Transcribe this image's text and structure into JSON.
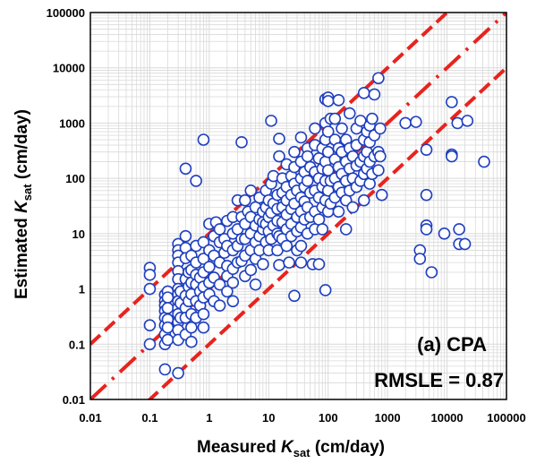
{
  "chart_data": {
    "type": "scatter",
    "title": "",
    "x_scale": "log",
    "y_scale": "log",
    "xlim": [
      0.01,
      100000
    ],
    "ylim": [
      0.01,
      100000
    ],
    "grid": true,
    "xlabel": {
      "pre": "Measured ",
      "var": "K",
      "sub": "sat",
      "post": " (cm/day)"
    },
    "ylabel": {
      "pre": "Estimated ",
      "var": "K",
      "sub": "sat",
      "post": " (cm/day)"
    },
    "x_ticks": [
      "0.01",
      "0.1",
      "1",
      "10",
      "100",
      "1000",
      "10000",
      "100000"
    ],
    "y_ticks": [
      "0.01",
      "0.1",
      "1",
      "10",
      "100",
      "1000",
      "10000",
      "100000"
    ],
    "annotations": [
      "(a) CPA",
      "RMSLE = 0.87"
    ],
    "colors": {
      "points": "#1f3fbf",
      "lines": "#e8231e",
      "grid": "#d9d9d9"
    },
    "reference_lines": [
      {
        "kind": "1:1",
        "style": "dash-dot",
        "offset_decades": 0
      },
      {
        "kind": "+2 order",
        "style": "dashed",
        "offset_decades": 1
      },
      {
        "kind": "-2 order",
        "style": "dashed",
        "offset_decades": -1
      }
    ],
    "points": [
      [
        0.1,
        2.4
      ],
      [
        0.1,
        1.8
      ],
      [
        0.1,
        1.0
      ],
      [
        0.1,
        0.22
      ],
      [
        0.1,
        0.1
      ],
      [
        0.18,
        0.78
      ],
      [
        0.18,
        0.6
      ],
      [
        0.18,
        0.5
      ],
      [
        0.18,
        0.4
      ],
      [
        0.18,
        0.3
      ],
      [
        0.18,
        0.22
      ],
      [
        0.18,
        0.15
      ],
      [
        0.18,
        0.1
      ],
      [
        0.18,
        0.035
      ],
      [
        0.2,
        0.9
      ],
      [
        0.2,
        0.7
      ],
      [
        0.2,
        0.45
      ],
      [
        0.2,
        0.28
      ],
      [
        0.2,
        0.2
      ],
      [
        0.2,
        0.12
      ],
      [
        0.3,
        6.5
      ],
      [
        0.3,
        5
      ],
      [
        0.3,
        4
      ],
      [
        0.3,
        3
      ],
      [
        0.3,
        2.1
      ],
      [
        0.3,
        1.5
      ],
      [
        0.3,
        1.0
      ],
      [
        0.3,
        0.8
      ],
      [
        0.3,
        0.6
      ],
      [
        0.3,
        0.45
      ],
      [
        0.3,
        0.35
      ],
      [
        0.3,
        0.25
      ],
      [
        0.3,
        0.18
      ],
      [
        0.3,
        0.12
      ],
      [
        0.3,
        0.03
      ],
      [
        0.33,
        0.55
      ],
      [
        0.33,
        0.3
      ],
      [
        0.33,
        0.9
      ],
      [
        0.4,
        150
      ],
      [
        0.4,
        9
      ],
      [
        0.4,
        5.5
      ],
      [
        0.4,
        3.6
      ],
      [
        0.4,
        1.5
      ],
      [
        0.4,
        0.75
      ],
      [
        0.4,
        0.45
      ],
      [
        0.4,
        0.3
      ],
      [
        0.4,
        0.15
      ],
      [
        0.45,
        2
      ],
      [
        0.45,
        1.1
      ],
      [
        0.45,
        0.6
      ],
      [
        0.5,
        4
      ],
      [
        0.5,
        2.2
      ],
      [
        0.5,
        1.3
      ],
      [
        0.5,
        0.8
      ],
      [
        0.5,
        0.35
      ],
      [
        0.5,
        0.2
      ],
      [
        0.5,
        0.11
      ],
      [
        0.6,
        90
      ],
      [
        0.6,
        6
      ],
      [
        0.6,
        3
      ],
      [
        0.6,
        1.8
      ],
      [
        0.6,
        1.2
      ],
      [
        0.6,
        0.6
      ],
      [
        0.6,
        0.3
      ],
      [
        0.7,
        0.5
      ],
      [
        0.7,
        0.9
      ],
      [
        0.7,
        1.6
      ],
      [
        0.8,
        500
      ],
      [
        0.8,
        7
      ],
      [
        0.8,
        3.5
      ],
      [
        0.8,
        2
      ],
      [
        0.8,
        1.1
      ],
      [
        0.8,
        0.7
      ],
      [
        0.8,
        0.35
      ],
      [
        0.8,
        0.2
      ],
      [
        1.0,
        15
      ],
      [
        1.0,
        5
      ],
      [
        1.0,
        2.5
      ],
      [
        1.0,
        1.3
      ],
      [
        1.0,
        0.8
      ],
      [
        1.2,
        9
      ],
      [
        1.2,
        4
      ],
      [
        1.2,
        1.6
      ],
      [
        1.2,
        0.6
      ],
      [
        1.3,
        16
      ],
      [
        1.5,
        12
      ],
      [
        1.5,
        7
      ],
      [
        1.5,
        3
      ],
      [
        1.5,
        1.2
      ],
      [
        1.5,
        0.5
      ],
      [
        1.8,
        8
      ],
      [
        1.8,
        4.5
      ],
      [
        2,
        17
      ],
      [
        2,
        6
      ],
      [
        2,
        2.6
      ],
      [
        2,
        1.7
      ],
      [
        2,
        0.9
      ],
      [
        2.5,
        20
      ],
      [
        2.5,
        10
      ],
      [
        2.5,
        5
      ],
      [
        2.5,
        2.3
      ],
      [
        2.5,
        1.3
      ],
      [
        2.5,
        0.6
      ],
      [
        3,
        40
      ],
      [
        3,
        12
      ],
      [
        3,
        6
      ],
      [
        3,
        3
      ],
      [
        3.5,
        450
      ],
      [
        3.5,
        20
      ],
      [
        3.5,
        8
      ],
      [
        3.5,
        3.2
      ],
      [
        4,
        40
      ],
      [
        4,
        15
      ],
      [
        4,
        8
      ],
      [
        4,
        4
      ],
      [
        4,
        1.7
      ],
      [
        4.5,
        25
      ],
      [
        5,
        60
      ],
      [
        5,
        20
      ],
      [
        5,
        10
      ],
      [
        5,
        5
      ],
      [
        5,
        2.2
      ],
      [
        6,
        30
      ],
      [
        6,
        14
      ],
      [
        6,
        7
      ],
      [
        6,
        3.5
      ],
      [
        6,
        1.2
      ],
      [
        7,
        45
      ],
      [
        7,
        18
      ],
      [
        7,
        9
      ],
      [
        7,
        5
      ],
      [
        8,
        25
      ],
      [
        8,
        12
      ],
      [
        8,
        2.8
      ],
      [
        8,
        16
      ],
      [
        9,
        60
      ],
      [
        9,
        30
      ],
      [
        9,
        15
      ],
      [
        9,
        7
      ],
      [
        10,
        40
      ],
      [
        10,
        20
      ],
      [
        10,
        11
      ],
      [
        10,
        5
      ],
      [
        11,
        1100
      ],
      [
        11,
        80
      ],
      [
        11,
        24
      ],
      [
        11,
        8
      ],
      [
        12,
        110
      ],
      [
        12,
        35
      ],
      [
        12,
        14
      ],
      [
        14,
        50
      ],
      [
        14,
        28
      ],
      [
        14,
        17
      ],
      [
        14,
        10
      ],
      [
        14,
        5
      ],
      [
        15,
        520
      ],
      [
        15,
        250
      ],
      [
        15,
        9
      ],
      [
        15,
        2.7
      ],
      [
        17,
        100
      ],
      [
        17,
        55
      ],
      [
        17,
        30
      ],
      [
        17,
        16
      ],
      [
        17,
        8
      ],
      [
        20,
        180
      ],
      [
        20,
        70
      ],
      [
        20,
        40
      ],
      [
        20,
        22
      ],
      [
        20,
        12
      ],
      [
        20,
        6
      ],
      [
        22,
        3
      ],
      [
        24,
        110
      ],
      [
        24,
        50
      ],
      [
        24,
        28
      ],
      [
        24,
        15
      ],
      [
        24,
        9
      ],
      [
        27,
        300
      ],
      [
        27,
        160
      ],
      [
        27,
        80
      ],
      [
        27,
        35
      ],
      [
        27,
        0.75
      ],
      [
        30,
        60
      ],
      [
        30,
        20
      ],
      [
        30,
        11
      ],
      [
        30,
        5
      ],
      [
        35,
        550
      ],
      [
        35,
        200
      ],
      [
        35,
        100
      ],
      [
        35,
        45
      ],
      [
        35,
        25
      ],
      [
        35,
        13
      ],
      [
        35,
        6
      ],
      [
        35,
        3
      ],
      [
        40,
        130
      ],
      [
        40,
        70
      ],
      [
        40,
        38
      ],
      [
        40,
        18
      ],
      [
        45,
        350
      ],
      [
        45,
        250
      ],
      [
        45,
        90
      ],
      [
        45,
        30
      ],
      [
        45,
        10
      ],
      [
        50,
        160
      ],
      [
        50,
        55
      ],
      [
        50,
        20
      ],
      [
        55,
        2.8
      ],
      [
        60,
        800
      ],
      [
        60,
        400
      ],
      [
        60,
        130
      ],
      [
        60,
        60
      ],
      [
        60,
        25
      ],
      [
        60,
        12
      ],
      [
        70,
        230
      ],
      [
        70,
        100
      ],
      [
        70,
        45
      ],
      [
        70,
        18
      ],
      [
        70,
        2.8
      ],
      [
        80,
        350
      ],
      [
        80,
        150
      ],
      [
        80,
        70
      ],
      [
        80,
        30
      ],
      [
        80,
        12
      ],
      [
        90,
        2700
      ],
      [
        90,
        1000
      ],
      [
        90,
        500
      ],
      [
        90,
        200
      ],
      [
        90,
        90
      ],
      [
        90,
        40
      ],
      [
        90,
        0.95
      ],
      [
        100,
        2900
      ],
      [
        100,
        2500
      ],
      [
        100,
        700
      ],
      [
        100,
        300
      ],
      [
        100,
        140
      ],
      [
        100,
        60
      ],
      [
        100,
        25
      ],
      [
        110,
        1200
      ],
      [
        110,
        90
      ],
      [
        110,
        35
      ],
      [
        130,
        1200
      ],
      [
        130,
        500
      ],
      [
        130,
        220
      ],
      [
        130,
        100
      ],
      [
        130,
        45
      ],
      [
        150,
        2600
      ],
      [
        150,
        350
      ],
      [
        150,
        160
      ],
      [
        150,
        70
      ],
      [
        150,
        25
      ],
      [
        170,
        800
      ],
      [
        170,
        300
      ],
      [
        170,
        120
      ],
      [
        170,
        55
      ],
      [
        200,
        500
      ],
      [
        200,
        200
      ],
      [
        200,
        90
      ],
      [
        200,
        40
      ],
      [
        200,
        12
      ],
      [
        230,
        1500
      ],
      [
        230,
        350
      ],
      [
        230,
        150
      ],
      [
        230,
        60
      ],
      [
        260,
        250
      ],
      [
        260,
        100
      ],
      [
        260,
        30
      ],
      [
        300,
        800
      ],
      [
        300,
        400
      ],
      [
        300,
        170
      ],
      [
        300,
        70
      ],
      [
        350,
        1100
      ],
      [
        350,
        200
      ],
      [
        350,
        90
      ],
      [
        400,
        3500
      ],
      [
        400,
        500
      ],
      [
        400,
        250
      ],
      [
        400,
        120
      ],
      [
        400,
        40
      ],
      [
        450,
        700
      ],
      [
        450,
        300
      ],
      [
        450,
        150
      ],
      [
        500,
        900
      ],
      [
        500,
        450
      ],
      [
        500,
        200
      ],
      [
        500,
        80
      ],
      [
        550,
        1200
      ],
      [
        550,
        120
      ],
      [
        600,
        3300
      ],
      [
        600,
        250
      ],
      [
        600,
        600
      ],
      [
        700,
        6500
      ],
      [
        700,
        300
      ],
      [
        700,
        140
      ],
      [
        750,
        800
      ],
      [
        750,
        250
      ],
      [
        800,
        50
      ],
      [
        2000,
        1000
      ],
      [
        3000,
        1050
      ],
      [
        3500,
        5
      ],
      [
        3500,
        3.5
      ],
      [
        4500,
        330
      ],
      [
        4500,
        50
      ],
      [
        4500,
        14
      ],
      [
        4500,
        12
      ],
      [
        5500,
        2
      ],
      [
        9000,
        10
      ],
      [
        12000,
        2400
      ],
      [
        12000,
        270
      ],
      [
        12000,
        250
      ],
      [
        15000,
        1000
      ],
      [
        16000,
        12
      ],
      [
        16000,
        6.5
      ],
      [
        20000,
        6.5
      ],
      [
        22000,
        1100
      ],
      [
        42000,
        200
      ]
    ]
  }
}
